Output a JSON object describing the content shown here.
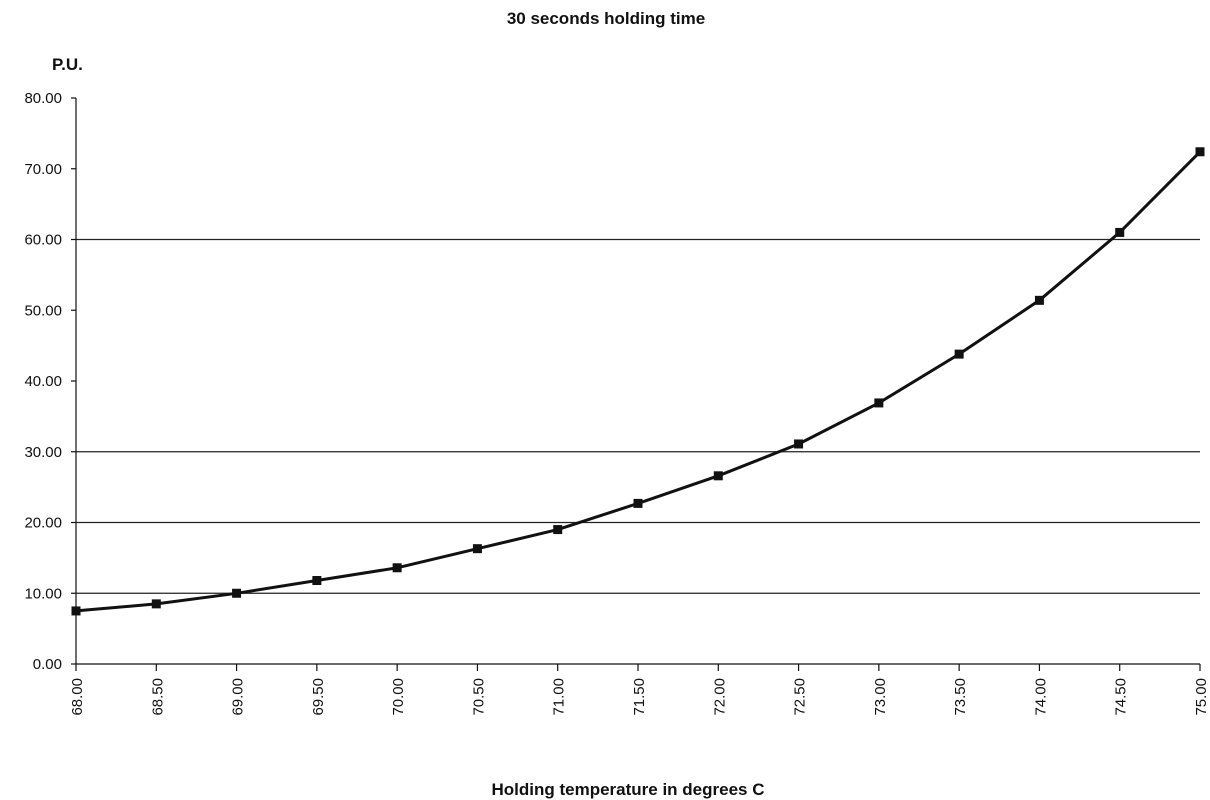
{
  "chart_data": {
    "type": "line",
    "title": "30 seconds holding time",
    "xlabel": "Holding temperature in degrees C",
    "ylabel": "P.U.",
    "xlim": [
      68.0,
      75.0
    ],
    "ylim": [
      0,
      80
    ],
    "x_tick_labels": [
      "68.00",
      "68.50",
      "69.00",
      "69.50",
      "70.00",
      "70.50",
      "71.00",
      "71.50",
      "72.00",
      "72.50",
      "73.00",
      "73.50",
      "74.00",
      "74.50",
      "75.00"
    ],
    "y_tick_labels": [
      "0.00",
      "10.00",
      "20.00",
      "30.00",
      "40.00",
      "50.00",
      "60.00",
      "70.00",
      "80.00"
    ],
    "y_gridlines": [
      10,
      20,
      30,
      60
    ],
    "marker": "square",
    "colors": {
      "line": "#111111",
      "grid": "#222222",
      "axis": "#111111"
    },
    "series": [
      {
        "x": [
          68.0,
          68.5,
          69.0,
          69.5,
          70.0,
          70.5,
          71.0,
          71.5,
          72.0,
          72.5,
          73.0,
          73.5,
          74.0,
          74.5,
          75.0
        ],
        "values": [
          7.5,
          8.5,
          10.0,
          11.8,
          13.6,
          16.3,
          19.0,
          22.7,
          26.6,
          31.1,
          36.9,
          43.8,
          51.4,
          61.0,
          72.4
        ]
      }
    ]
  }
}
